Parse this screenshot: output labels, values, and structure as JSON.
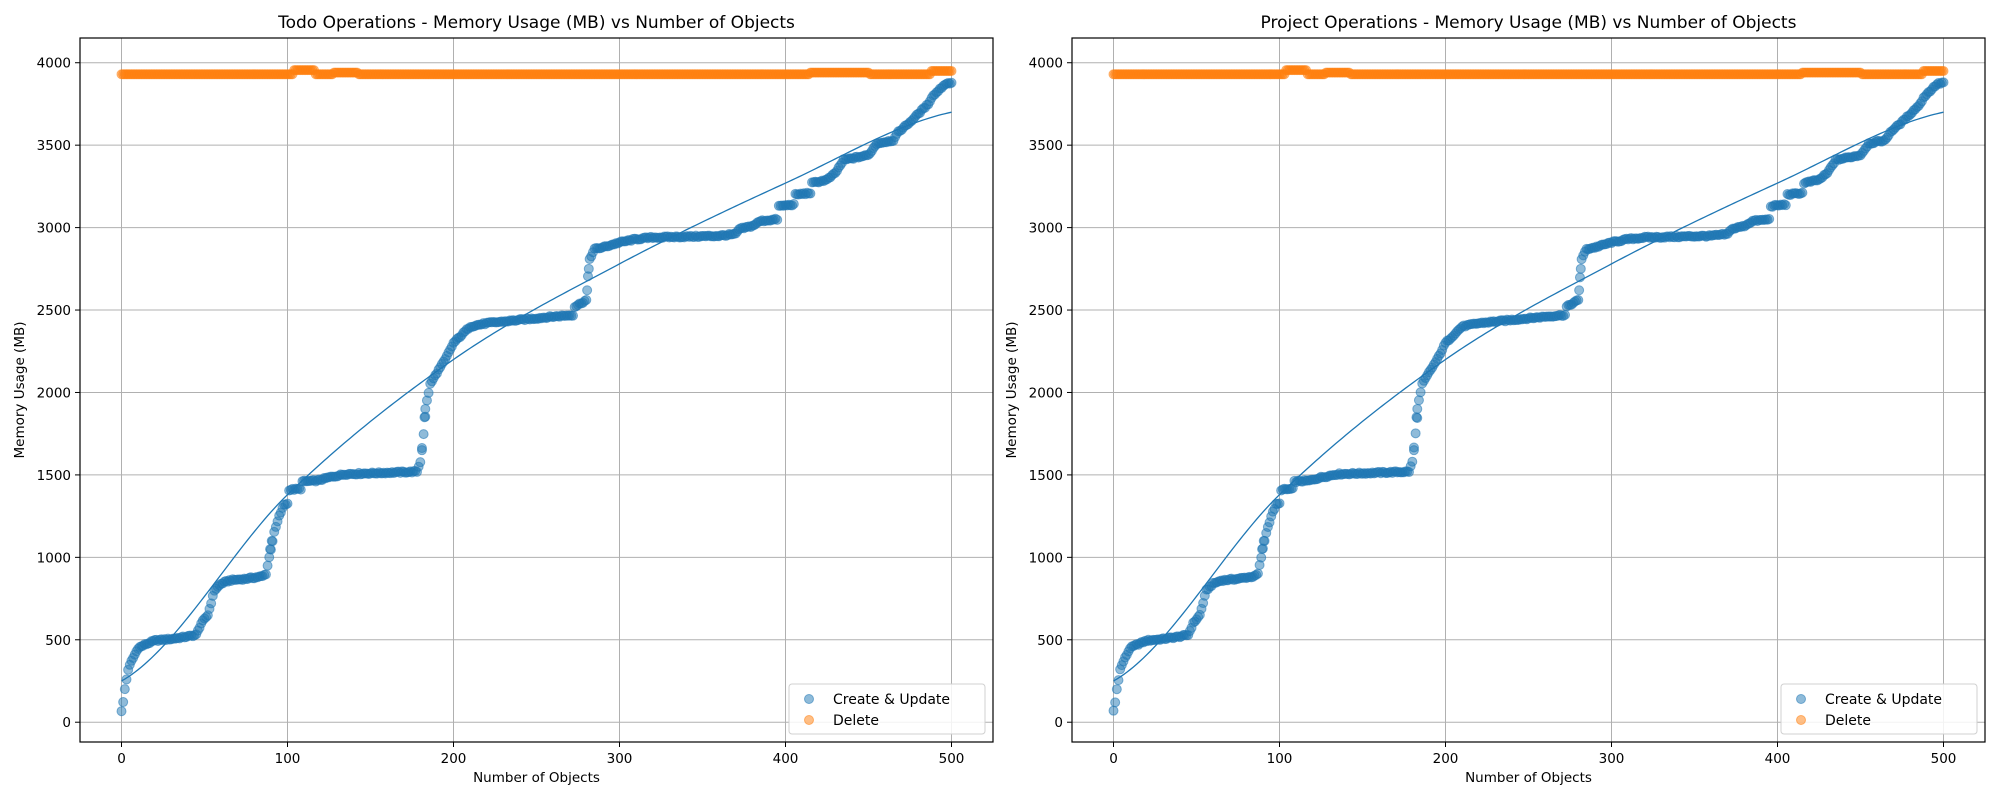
{
  "chart_data": [
    {
      "type": "scatter",
      "title": "Todo Operations - Memory Usage (MB) vs Number of Objects",
      "xlabel": "Number of Objects",
      "ylabel": "Memory Usage (MB)",
      "xlim": [
        -25,
        525
      ],
      "ylim": [
        -120,
        4150
      ],
      "xticks": [
        0,
        100,
        200,
        300,
        400,
        500
      ],
      "yticks": [
        0,
        500,
        1000,
        1500,
        2000,
        2500,
        3000,
        3500,
        4000
      ],
      "grid": true,
      "legend_position": "bottom-right",
      "legend": [
        "Create & Update",
        "Delete"
      ],
      "series": [
        {
          "name": "Create & Update",
          "color": "#1f77b4",
          "keypoints": [
            [
              0,
              70
            ],
            [
              1,
              120
            ],
            [
              2,
              200
            ],
            [
              3,
              260
            ],
            [
              4,
              320
            ],
            [
              6,
              370
            ],
            [
              8,
              410
            ],
            [
              10,
              450
            ],
            [
              14,
              470
            ],
            [
              20,
              495
            ],
            [
              30,
              505
            ],
            [
              40,
              520
            ],
            [
              45,
              530
            ],
            [
              48,
              600
            ],
            [
              52,
              650
            ],
            [
              56,
              800
            ],
            [
              60,
              840
            ],
            [
              65,
              860
            ],
            [
              75,
              870
            ],
            [
              85,
              885
            ],
            [
              87,
              900
            ],
            [
              89,
              1000
            ],
            [
              92,
              1150
            ],
            [
              95,
              1250
            ],
            [
              98,
              1320
            ],
            [
              100,
              1325
            ],
            [
              101,
              1410
            ],
            [
              108,
              1415
            ],
            [
              109,
              1460
            ],
            [
              118,
              1465
            ],
            [
              125,
              1485
            ],
            [
              135,
              1505
            ],
            [
              150,
              1510
            ],
            [
              165,
              1515
            ],
            [
              178,
              1520
            ],
            [
              180,
              1580
            ],
            [
              182,
              1750
            ],
            [
              184,
              1950
            ],
            [
              186,
              2050
            ],
            [
              190,
              2120
            ],
            [
              195,
              2200
            ],
            [
              200,
              2300
            ],
            [
              205,
              2350
            ],
            [
              210,
              2400
            ],
            [
              220,
              2420
            ],
            [
              240,
              2440
            ],
            [
              260,
              2460
            ],
            [
              272,
              2470
            ],
            [
              273,
              2520
            ],
            [
              280,
              2560
            ],
            [
              281,
              2700
            ],
            [
              282,
              2810
            ],
            [
              285,
              2870
            ],
            [
              290,
              2880
            ],
            [
              300,
              2910
            ],
            [
              310,
              2930
            ],
            [
              320,
              2940
            ],
            [
              360,
              2950
            ],
            [
              370,
              2960
            ],
            [
              372,
              2990
            ],
            [
              380,
              3010
            ],
            [
              385,
              3040
            ],
            [
              395,
              3050
            ],
            [
              396,
              3130
            ],
            [
              405,
              3140
            ],
            [
              406,
              3200
            ],
            [
              415,
              3210
            ],
            [
              416,
              3270
            ],
            [
              425,
              3290
            ],
            [
              430,
              3330
            ],
            [
              435,
              3410
            ],
            [
              450,
              3440
            ],
            [
              455,
              3510
            ],
            [
              465,
              3530
            ],
            [
              468,
              3580
            ],
            [
              475,
              3640
            ],
            [
              482,
              3710
            ],
            [
              486,
              3750
            ],
            [
              488,
              3790
            ],
            [
              492,
              3830
            ],
            [
              496,
              3870
            ],
            [
              500,
              3880
            ]
          ],
          "fit": [
            [
              0,
              250
            ],
            [
              100,
              1380
            ],
            [
              200,
              2200
            ],
            [
              300,
              2780
            ],
            [
              400,
              3270
            ],
            [
              500,
              3700
            ]
          ]
        },
        {
          "name": "Delete",
          "color": "#ff7f0e",
          "baseline": 3930,
          "bumps": [
            [
              104,
              116,
              3955
            ],
            [
              128,
              142,
              3940
            ],
            [
              415,
              450,
              3940
            ],
            [
              488,
              500,
              3950
            ]
          ]
        }
      ]
    },
    {
      "type": "scatter",
      "title": "Project Operations - Memory Usage (MB) vs Number of Objects",
      "xlabel": "Number of Objects",
      "ylabel": "Memory Usage (MB)",
      "xlim": [
        -25,
        525
      ],
      "ylim": [
        -120,
        4150
      ],
      "xticks": [
        0,
        100,
        200,
        300,
        400,
        500
      ],
      "yticks": [
        0,
        500,
        1000,
        1500,
        2000,
        2500,
        3000,
        3500,
        4000
      ],
      "grid": true,
      "legend_position": "bottom-right",
      "legend": [
        "Create & Update",
        "Delete"
      ],
      "series": [
        {
          "name": "Create & Update",
          "color": "#1f77b4",
          "keypoints": [
            [
              0,
              70
            ],
            [
              1,
              120
            ],
            [
              2,
              200
            ],
            [
              3,
              260
            ],
            [
              4,
              320
            ],
            [
              6,
              370
            ],
            [
              8,
              410
            ],
            [
              10,
              450
            ],
            [
              14,
              470
            ],
            [
              20,
              495
            ],
            [
              30,
              505
            ],
            [
              40,
              520
            ],
            [
              45,
              530
            ],
            [
              48,
              600
            ],
            [
              52,
              650
            ],
            [
              56,
              800
            ],
            [
              60,
              840
            ],
            [
              65,
              860
            ],
            [
              75,
              870
            ],
            [
              85,
              885
            ],
            [
              87,
              900
            ],
            [
              89,
              1000
            ],
            [
              92,
              1150
            ],
            [
              95,
              1250
            ],
            [
              98,
              1320
            ],
            [
              100,
              1325
            ],
            [
              101,
              1410
            ],
            [
              108,
              1415
            ],
            [
              109,
              1460
            ],
            [
              118,
              1465
            ],
            [
              125,
              1485
            ],
            [
              135,
              1505
            ],
            [
              150,
              1510
            ],
            [
              165,
              1515
            ],
            [
              178,
              1520
            ],
            [
              180,
              1580
            ],
            [
              182,
              1750
            ],
            [
              184,
              1950
            ],
            [
              186,
              2050
            ],
            [
              190,
              2120
            ],
            [
              195,
              2200
            ],
            [
              200,
              2300
            ],
            [
              205,
              2350
            ],
            [
              210,
              2400
            ],
            [
              220,
              2420
            ],
            [
              240,
              2440
            ],
            [
              260,
              2460
            ],
            [
              272,
              2470
            ],
            [
              273,
              2520
            ],
            [
              280,
              2560
            ],
            [
              281,
              2700
            ],
            [
              282,
              2810
            ],
            [
              285,
              2870
            ],
            [
              290,
              2880
            ],
            [
              300,
              2910
            ],
            [
              310,
              2930
            ],
            [
              320,
              2940
            ],
            [
              360,
              2950
            ],
            [
              370,
              2960
            ],
            [
              372,
              2990
            ],
            [
              380,
              3010
            ],
            [
              385,
              3040
            ],
            [
              395,
              3050
            ],
            [
              396,
              3130
            ],
            [
              405,
              3140
            ],
            [
              406,
              3200
            ],
            [
              415,
              3210
            ],
            [
              416,
              3270
            ],
            [
              425,
              3290
            ],
            [
              430,
              3330
            ],
            [
              435,
              3410
            ],
            [
              450,
              3440
            ],
            [
              455,
              3510
            ],
            [
              465,
              3530
            ],
            [
              468,
              3580
            ],
            [
              475,
              3640
            ],
            [
              482,
              3710
            ],
            [
              486,
              3750
            ],
            [
              488,
              3790
            ],
            [
              492,
              3830
            ],
            [
              496,
              3870
            ],
            [
              500,
              3880
            ]
          ],
          "fit": [
            [
              0,
              250
            ],
            [
              100,
              1380
            ],
            [
              200,
              2200
            ],
            [
              300,
              2780
            ],
            [
              400,
              3270
            ],
            [
              500,
              3700
            ]
          ]
        },
        {
          "name": "Delete",
          "color": "#ff7f0e",
          "baseline": 3930,
          "bumps": [
            [
              104,
              116,
              3955
            ],
            [
              128,
              142,
              3940
            ],
            [
              415,
              450,
              3940
            ],
            [
              488,
              500,
              3950
            ]
          ]
        }
      ]
    }
  ]
}
